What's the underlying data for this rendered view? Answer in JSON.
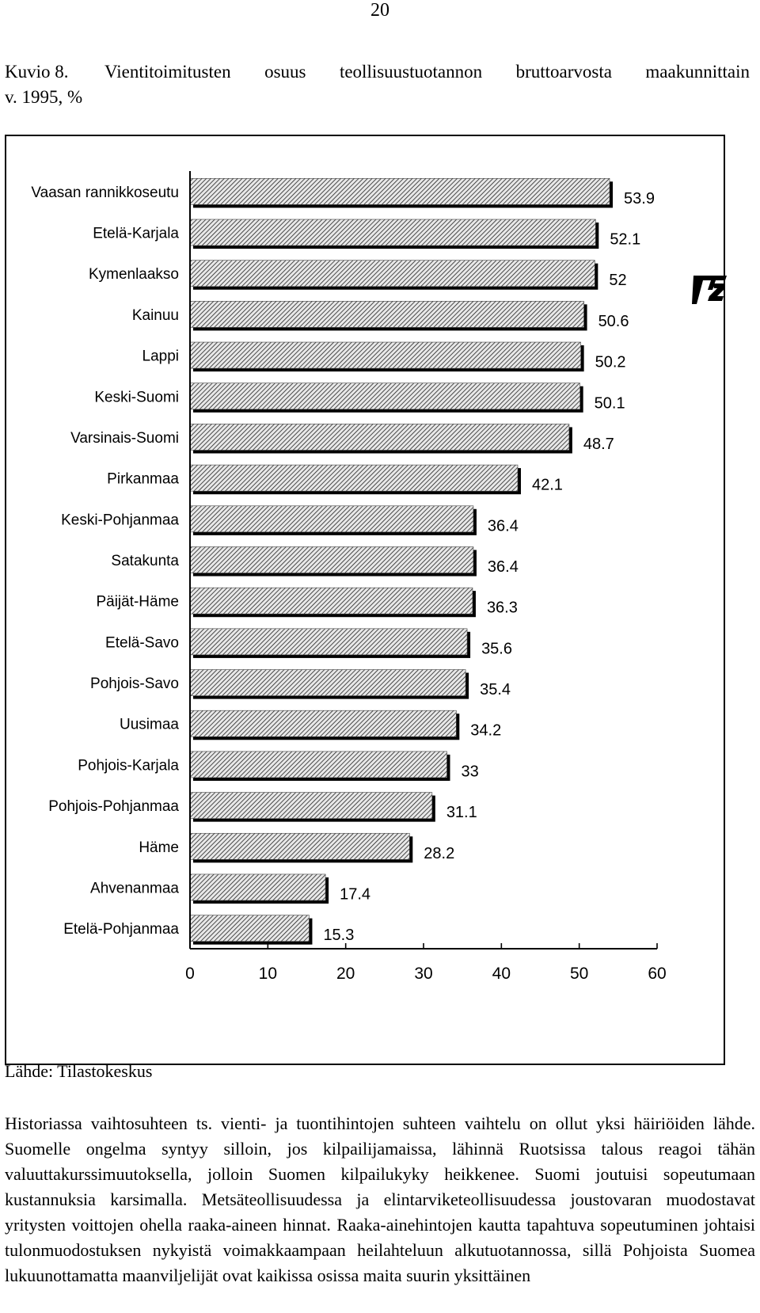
{
  "page_number": "20",
  "figure": {
    "number": "Kuvio 8.",
    "title_line1": "Vientitoimitusten osuus teollisuustuotannon bruttoarvosta maakunnittain",
    "title_line2": "v. 1995, %",
    "source": "Lähde: Tilastokeskus"
  },
  "chart_data": {
    "type": "bar",
    "orientation": "horizontal",
    "title": "Vientitoimitusten osuus teollisuustuotannon bruttoarvosta maakunnittain v. 1995, %",
    "categories": [
      "Vaasan rannikkoseutu",
      "Etelä-Karjala",
      "Kymenlaakso",
      "Kainuu",
      "Lappi",
      "Keski-Suomi",
      "Varsinais-Suomi",
      "Pirkanmaa",
      "Keski-Pohjanmaa",
      "Satakunta",
      "Päijät-Häme",
      "Etelä-Savo",
      "Pohjois-Savo",
      "Uusimaa",
      "Pohjois-Karjala",
      "Pohjois-Pohjanmaa",
      "Häme",
      "Ahvenanmaa",
      "Etelä-Pohjanmaa"
    ],
    "values": [
      53.9,
      52.1,
      52,
      50.6,
      50.2,
      50.1,
      48.7,
      42.1,
      36.4,
      36.4,
      36.3,
      35.6,
      35.4,
      34.2,
      33,
      31.1,
      28.2,
      17.4,
      15.3
    ],
    "value_labels": [
      "53.9",
      "52.1",
      "52",
      "50.6",
      "50.2",
      "50.1",
      "48.7",
      "42.1",
      "36.4",
      "36.4",
      "36.3",
      "35.6",
      "35.4",
      "34.2",
      "33",
      "31.1",
      "28.2",
      "17.4",
      "15.3"
    ],
    "xlim": [
      0,
      60
    ],
    "xticks": [
      "0",
      "10",
      "20",
      "30",
      "40",
      "50",
      "60"
    ],
    "xlabel": "",
    "ylabel": "",
    "grid": false,
    "bar_fill": "diagonal-hatch",
    "colors": {
      "bar_hatch": "#222222",
      "bar_fill": "#e8e8e8",
      "bar_shadow": "#000000"
    }
  },
  "body_text": "Historiassa vaihtosuhteen ts. vienti- ja tuontihintojen suhteen vaihtelu on ollut yksi häiriöiden lähde. Suomelle ongelma syntyy silloin, jos kilpailijamaissa, lähinnä Ruotsissa talous reagoi tähän valuuttakurssimuutoksella, jolloin Suomen kilpailukyky heikkenee. Suomi joutuisi sopeutumaan kustannuksia karsimalla. Metsäteollisuudessa ja elintarviketeollisuudessa joustovaran muodostavat yritysten voittojen ohella raaka-aineen hinnat. Raaka-ainehintojen kautta tapahtuva sopeutuminen johtaisi tulonmuodostuksen nykyistä voimakkaampaan heilahteluun alkutuotannossa, sillä Pohjoista Suomea lukuunottamatta maanviljelijät ovat kaikissa osissa maita suurin yksittäinen"
}
